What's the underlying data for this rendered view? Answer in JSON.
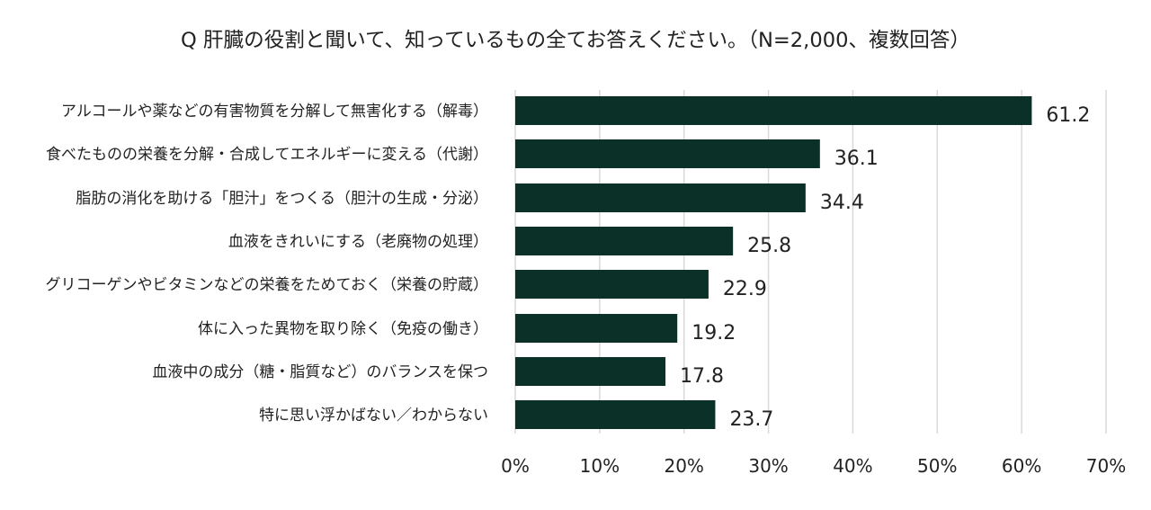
{
  "chart_data": {
    "type": "bar",
    "orientation": "horizontal",
    "title": "Q 肝臓の役割と聞いて、知っているもの全てお答えください。（N=2,000、複数回答）",
    "categories": [
      "アルコールや薬などの有害物質を分解して無害化する（解毒）",
      "食べたものの栄養を分解・合成してエネルギーに変える（代謝）",
      "脂肪の消化を助ける「胆汁」をつくる（胆汁の生成・分泌）",
      "血液をきれいにする（老廃物の処理）",
      "グリコーゲンやビタミンなどの栄養をためておく（栄養の貯蔵）",
      "体に入った異物を取り除く（免疫の働き）",
      "血液中の成分（糖・脂質など）のバランスを保つ",
      "特に思い浮かばない／わからない"
    ],
    "values": [
      61.2,
      36.1,
      34.4,
      25.8,
      22.9,
      19.2,
      17.8,
      23.7
    ],
    "value_labels": [
      "61.2",
      "36.1",
      "34.4",
      "25.8",
      "22.9",
      "19.2",
      "17.8",
      "23.7"
    ],
    "xticks": [
      "0%",
      "10%",
      "20%",
      "30%",
      "40%",
      "50%",
      "60%",
      "70%"
    ],
    "xlim": [
      0,
      70
    ],
    "grid": true,
    "legend": "none",
    "bar_color": "#0b3028",
    "grid_color": "#d9d9d9"
  }
}
